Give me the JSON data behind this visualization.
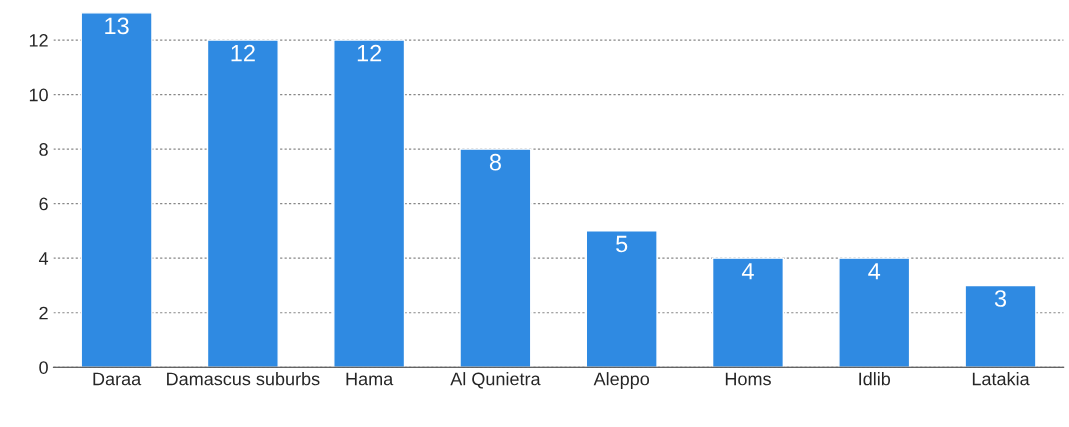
{
  "chart_data": {
    "type": "bar",
    "categories": [
      "Daraa",
      "Damascus suburbs",
      "Hama",
      "Al Qunietra",
      "Aleppo",
      "Homs",
      "Idlib",
      "Latakia"
    ],
    "values": [
      13,
      12,
      12,
      8,
      5,
      4,
      4,
      3
    ],
    "color": "#2f8ae2",
    "ylim": [
      0,
      13
    ],
    "yticks": [
      0,
      2,
      4,
      6,
      8,
      10,
      12
    ],
    "grid": "y",
    "data_labels": true
  }
}
